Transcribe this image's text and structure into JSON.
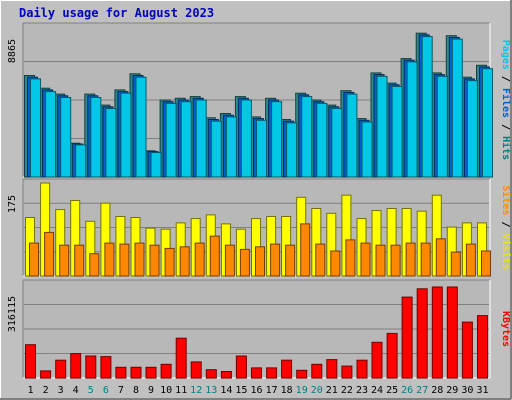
{
  "chart_data": {
    "type": "bar",
    "title": "Daily usage for August 2023",
    "days": [
      "1",
      "2",
      "3",
      "4",
      "5",
      "6",
      "7",
      "8",
      "9",
      "10",
      "11",
      "12",
      "13",
      "14",
      "15",
      "16",
      "17",
      "18",
      "19",
      "20",
      "21",
      "22",
      "23",
      "24",
      "25",
      "26",
      "27",
      "28",
      "29",
      "30",
      "31"
    ],
    "weekend_days": [
      "5",
      "6",
      "12",
      "13",
      "19",
      "20",
      "26",
      "27"
    ],
    "panels": [
      {
        "id": "top",
        "ymax_label": "8865",
        "ylim": [
          0,
          8865
        ],
        "label_parts": [
          {
            "text": "Pages",
            "color": "#00c8e6"
          },
          {
            "text": " / ",
            "color": "#000000"
          },
          {
            "text": "Files",
            "color": "#0060d0"
          },
          {
            "text": " / ",
            "color": "#000000"
          },
          {
            "text": "Hits",
            "color": "#008080"
          }
        ],
        "series": [
          {
            "name": "Hits",
            "color": "#2e8b8b",
            "values": [
              6000,
              5250,
              4900,
              2000,
              4900,
              4250,
              5150,
              6100,
              1550,
              4550,
              4650,
              4750,
              3500,
              3750,
              4750,
              3550,
              4650,
              3400,
              4950,
              4550,
              4250,
              5100,
              3450,
              6150,
              5550,
              7000,
              8500,
              6150,
              8350,
              5900,
              6600
            ]
          },
          {
            "name": "Files",
            "color": "#0060d0",
            "values": [
              5900,
              5150,
              4800,
              1950,
              4800,
              4150,
              5050,
              6000,
              1500,
              4450,
              4550,
              4650,
              3400,
              3650,
              4650,
              3450,
              4550,
              3300,
              4850,
              4450,
              4150,
              5000,
              3350,
              6050,
              5450,
              6900,
              8400,
              6050,
              8250,
              5800,
              6500
            ]
          },
          {
            "name": "Pages",
            "color": "#00c8e6",
            "values": [
              5800,
              5050,
              4700,
              1900,
              4700,
              4050,
              4950,
              5900,
              1450,
              4350,
              4450,
              4550,
              3300,
              3550,
              4550,
              3350,
              4450,
              3200,
              4750,
              4350,
              4050,
              4900,
              3250,
              5950,
              5350,
              6800,
              8300,
              5950,
              8150,
              5700,
              6400
            ]
          }
        ]
      },
      {
        "id": "middle",
        "ymax_label": "175",
        "ylim": [
          0,
          175
        ],
        "label_parts": [
          {
            "text": "Sites",
            "color": "#ff8c00"
          },
          {
            "text": " / ",
            "color": "#000000"
          },
          {
            "text": "Visits",
            "color": "#e6e600"
          }
        ],
        "series": [
          {
            "name": "Visits",
            "color": "#ffff00",
            "values": [
              110,
              175,
              125,
              142,
              103,
              137,
              112,
              110,
              90,
              88,
              100,
              108,
              115,
              98,
              88,
              108,
              112,
              112,
              148,
              127,
              118,
              152,
              108,
              123,
              127,
              127,
              122,
              152,
              92,
              100,
              100
            ]
          },
          {
            "name": "Sites",
            "color": "#ff8800",
            "values": [
              62,
              82,
              58,
              58,
              42,
              62,
              60,
              62,
              58,
              52,
              55,
              62,
              75,
              58,
              50,
              55,
              60,
              58,
              98,
              60,
              47,
              68,
              62,
              58,
              58,
              62,
              62,
              70,
              45,
              60,
              47
            ]
          }
        ]
      },
      {
        "id": "bottom",
        "ymax_label": "316115",
        "ylim": [
          0,
          316115
        ],
        "label_parts": [
          {
            "text": "KBytes",
            "color": "#ff0000"
          }
        ],
        "series": [
          {
            "name": "KBytes",
            "color": "#ff0000",
            "values": [
              112000,
              24000,
              60000,
              82000,
              74000,
              72000,
              36000,
              36000,
              36000,
              46000,
              134000,
              54000,
              28000,
              22000,
              74000,
              34000,
              34000,
              60000,
              26000,
              46000,
              62000,
              40000,
              60000,
              120000,
              150000,
              272000,
              300000,
              306000,
              306000,
              188000,
              210000
            ]
          }
        ]
      }
    ]
  }
}
